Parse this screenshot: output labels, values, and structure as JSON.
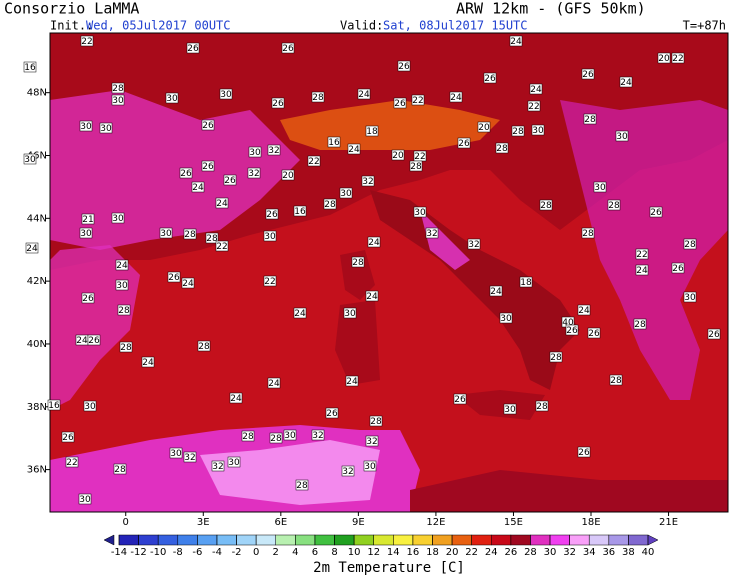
{
  "header": {
    "title": "Consorzio LaMMA",
    "model": "ARW 12km - (GFS 50km)",
    "init_label": "Init.:",
    "init": "Wed, 05Jul2017 00UTC",
    "valid_label": "Valid:",
    "valid": "Sat, 08Jul2017 15UTC",
    "lead": "T=+87h"
  },
  "map": {
    "lon_lim": [
      -2.93,
      23.3
    ],
    "lat_lim": [
      34.65,
      49.9
    ],
    "lon_ticks": [
      {
        "value": 0,
        "label": "0"
      },
      {
        "value": 3,
        "label": "3E"
      },
      {
        "value": 6,
        "label": "6E"
      },
      {
        "value": 9,
        "label": "9E"
      },
      {
        "value": 12,
        "label": "12E"
      },
      {
        "value": 15,
        "label": "15E"
      },
      {
        "value": 18,
        "label": "18E"
      },
      {
        "value": 21,
        "label": "21E"
      }
    ],
    "lat_ticks": [
      {
        "value": 48,
        "label": "48N"
      },
      {
        "value": 46,
        "label": "46N"
      },
      {
        "value": 44,
        "label": "44N"
      },
      {
        "value": 42,
        "label": "42N"
      },
      {
        "value": 40,
        "label": "40N"
      },
      {
        "value": 38,
        "label": "38N"
      },
      {
        "value": 36,
        "label": "36N"
      }
    ],
    "station_values": [
      22,
      26,
      26,
      24,
      16,
      28,
      26,
      26,
      26,
      24,
      20,
      22,
      30,
      30,
      30,
      26,
      28,
      24,
      26,
      22,
      24,
      22,
      24,
      28,
      30,
      30,
      26,
      18,
      20,
      28,
      30,
      30,
      30,
      26,
      26,
      30,
      32,
      16,
      24,
      20,
      26,
      28,
      26,
      24,
      32,
      20,
      22,
      22,
      28,
      32,
      30,
      28,
      24,
      26,
      16,
      21,
      30,
      24,
      30,
      30,
      28,
      28,
      30,
      22,
      32,
      30,
      28,
      30,
      28,
      26,
      32,
      24,
      28,
      22,
      28,
      28,
      24,
      26,
      24,
      22,
      30,
      26,
      24,
      26,
      24,
      24,
      28,
      18,
      24,
      30,
      40,
      24,
      28,
      30,
      30,
      24,
      26,
      28,
      28,
      24,
      26,
      28,
      26,
      26,
      24,
      24,
      24,
      16,
      30,
      26,
      28,
      26,
      30,
      28,
      28,
      26,
      28,
      28,
      30,
      32,
      32,
      30,
      32,
      30,
      32,
      22,
      28,
      32,
      30,
      28,
      26,
      30
    ]
  },
  "colorbar": {
    "title": "2m Temperature [C]",
    "ticks": [
      -14,
      -12,
      -10,
      -8,
      -6,
      -4,
      -2,
      0,
      2,
      4,
      6,
      8,
      10,
      12,
      14,
      16,
      18,
      20,
      22,
      24,
      26,
      28,
      30,
      32,
      34,
      36,
      38,
      40
    ],
    "colors": [
      "#20208c",
      "#2424b8",
      "#2e3fd0",
      "#3560e0",
      "#3f80ea",
      "#58a0f2",
      "#78bdf6",
      "#a0d4f8",
      "#c8e8f8",
      "#b8f0b0",
      "#88e080",
      "#40c040",
      "#20a020",
      "#90d020",
      "#d8e830",
      "#f8f040",
      "#f8d030",
      "#f0a020",
      "#e86010",
      "#e02010",
      "#c80818",
      "#a00820",
      "#e030c0",
      "#f040f0",
      "#f8a0f8",
      "#d8c8f8",
      "#a898e8",
      "#8068d0",
      "#6040c0"
    ]
  }
}
